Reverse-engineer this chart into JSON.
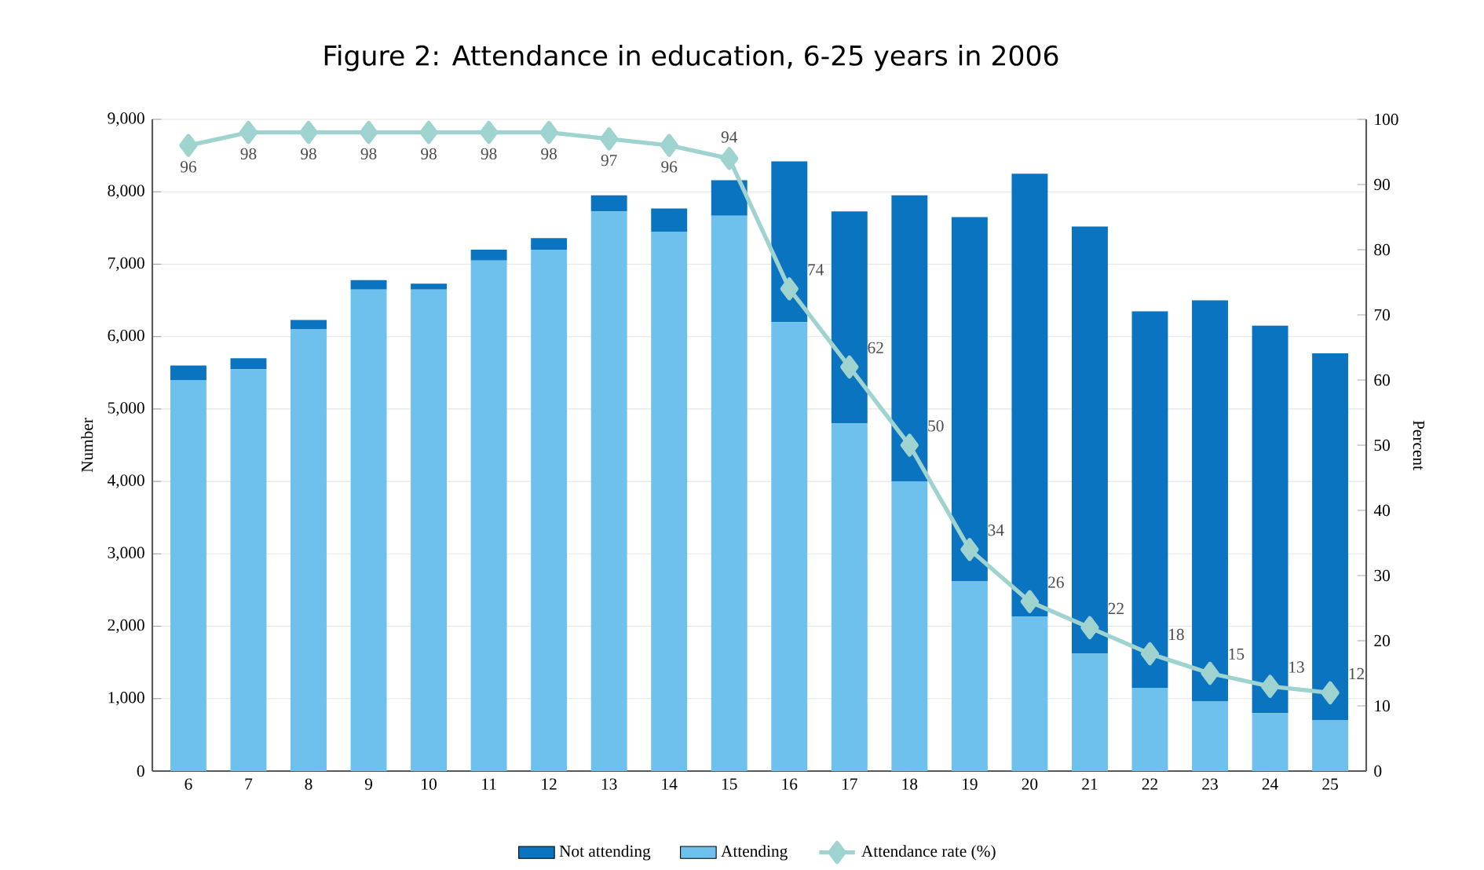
{
  "chart_data": {
    "type": "bar",
    "title": "Figure 2: Attendance in education, 6-25 years in 2006",
    "ylabel": "Number",
    "y2label": "Percent",
    "categories": [
      "6",
      "7",
      "8",
      "9",
      "10",
      "11",
      "12",
      "13",
      "14",
      "15",
      "16",
      "17",
      "18",
      "19",
      "20",
      "21",
      "22",
      "23",
      "24",
      "25"
    ],
    "stacked": true,
    "grid": "y",
    "legend": "bottom",
    "ylim": [
      0,
      9000
    ],
    "yticks": [
      0,
      {
        "value": 1000,
        "label": "1,000"
      },
      {
        "value": 2000,
        "label": "2,000"
      },
      {
        "value": 3000,
        "label": "3,000"
      },
      {
        "value": 4000,
        "label": "4,000"
      },
      {
        "value": 5000,
        "label": "5,000"
      },
      {
        "value": 6000,
        "label": "6,000"
      },
      {
        "value": 7000,
        "label": "7,000"
      },
      {
        "value": 8000,
        "label": "8,000"
      },
      {
        "value": 9000,
        "label": "9,000"
      }
    ],
    "y2lim": [
      0,
      100
    ],
    "y2ticks": [
      0,
      10,
      20,
      30,
      40,
      50,
      60,
      70,
      80,
      90,
      100
    ],
    "series": [
      {
        "name": "Attending",
        "color": "#6ec1ec",
        "values": [
          5400,
          5550,
          6100,
          6650,
          6650,
          7050,
          7200,
          7730,
          7450,
          7670,
          6200,
          4800,
          4000,
          2620,
          2130,
          1620,
          1150,
          960,
          800,
          700
        ]
      },
      {
        "name": "Not attending",
        "color": "#0a74c0",
        "values": [
          200,
          150,
          130,
          130,
          80,
          150,
          160,
          220,
          320,
          490,
          2220,
          2930,
          3950,
          5030,
          6120,
          5900,
          5200,
          5540,
          5350,
          5070
        ]
      },
      {
        "name": "Attendance rate (%)",
        "type": "line",
        "axis": "y2",
        "color": "#9fd3cf",
        "marker": "diamond",
        "values": [
          96,
          98,
          98,
          98,
          98,
          98,
          98,
          97,
          96,
          94,
          74,
          62,
          50,
          34,
          26,
          22,
          18,
          15,
          13,
          12
        ],
        "value_labels": [
          "96",
          "98",
          "98",
          "98",
          "98",
          "98",
          "98",
          "97",
          "96",
          "94",
          "74",
          "62",
          "50",
          "34",
          "26",
          "22",
          "18",
          "15",
          "13",
          "12"
        ]
      }
    ]
  }
}
